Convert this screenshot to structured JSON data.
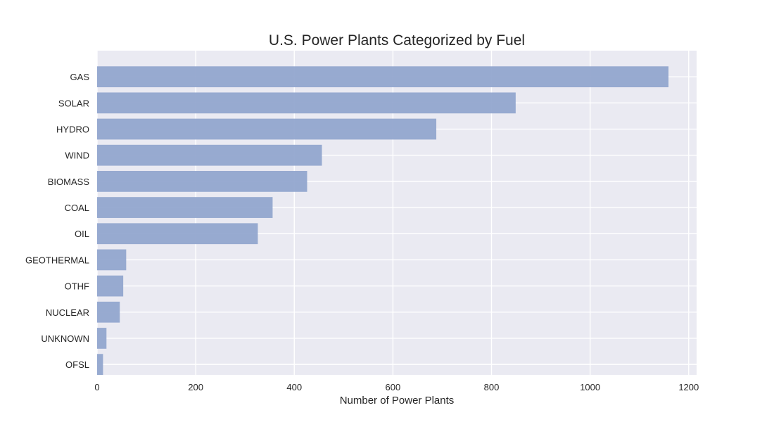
{
  "chart_data": {
    "type": "bar",
    "orientation": "horizontal",
    "title": "U.S. Power Plants Categorized by Fuel",
    "xlabel": "Number of Power Plants",
    "ylabel": "",
    "categories": [
      "GAS",
      "SOLAR",
      "HYDRO",
      "WIND",
      "BIOMASS",
      "COAL",
      "OIL",
      "GEOTHERMAL",
      "OTHF",
      "NUCLEAR",
      "UNKNOWN",
      "OFSL"
    ],
    "values": [
      1159,
      849,
      688,
      456,
      426,
      356,
      326,
      59,
      53,
      46,
      19,
      12
    ],
    "xlim": [
      0,
      1216
    ],
    "xticks": [
      "0",
      "200",
      "400",
      "600",
      "800",
      "1000",
      "1200"
    ],
    "grid": true,
    "colors": {
      "bar": "#8fa4cd",
      "plot_background": "#eaeaf2",
      "grid": "#ffffff",
      "text": "#262626"
    }
  }
}
